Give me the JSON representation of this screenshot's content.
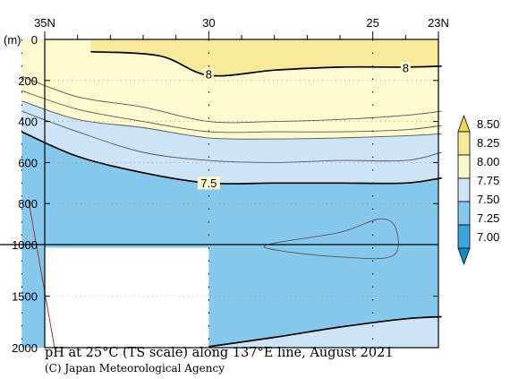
{
  "chart_data": {
    "type": "contour",
    "title": "pH at 25°C (TS scale) along 137°E line, August 2021",
    "credit": "(C) Japan Meteorological Agency",
    "x_axis": {
      "range": [
        35,
        23
      ],
      "ticks": [
        {
          "value": 35,
          "label": "35N"
        },
        {
          "value": 30,
          "label": "30"
        },
        {
          "value": 25,
          "label": "25"
        },
        {
          "value": 23,
          "label": "23N"
        }
      ]
    },
    "y_axis": {
      "unit_label": "(m)",
      "upper_range": [
        0,
        1000
      ],
      "lower_range": [
        1000,
        2000
      ],
      "ticks": [
        {
          "value": 0,
          "label": "0"
        },
        {
          "value": 200,
          "label": "200"
        },
        {
          "value": 400,
          "label": "400"
        },
        {
          "value": 600,
          "label": "600"
        },
        {
          "value": 800,
          "label": "800"
        },
        {
          "value": 1000,
          "label": "1000"
        },
        {
          "value": 1500,
          "label": "1500"
        },
        {
          "value": 2000,
          "label": "2000"
        }
      ]
    },
    "colorbar": {
      "labels": [
        "8.50",
        "8.25",
        "8.00",
        "7.75",
        "7.50",
        "7.25",
        "7.00"
      ],
      "colors": [
        "#eed85c",
        "#f6ea9a",
        "#fdfad0",
        "#cde3f6",
        "#86c8ec",
        "#3aa6dc",
        "#0f8bcc"
      ]
    },
    "band_colors": {
      "above_8_00": "#f6ea9a",
      "7_75_to_8_00": "#fdfad0",
      "7_50_to_7_75": "#cde3f6",
      "below_7_50": "#86c8ec"
    },
    "contour_labels": [
      {
        "text": "8",
        "lat": 30,
        "depth": 170
      },
      {
        "text": "8",
        "lat": 24,
        "depth": 140
      },
      {
        "text": "7.5",
        "lat": 30,
        "depth": 700
      }
    ],
    "contours": {
      "c8_00": [
        [
          33.6,
          60
        ],
        [
          31.5,
          80
        ],
        [
          30,
          175
        ],
        [
          28,
          150
        ],
        [
          26,
          135
        ],
        [
          24,
          135
        ],
        [
          22.9,
          130
        ]
      ],
      "c7_95": [
        [
          35.7,
          180
        ],
        [
          34,
          280
        ],
        [
          32,
          330
        ],
        [
          30,
          400
        ],
        [
          28,
          400
        ],
        [
          26,
          390
        ],
        [
          24,
          370
        ],
        [
          22.9,
          350
        ]
      ],
      "c7_90": [
        [
          35.7,
          250
        ],
        [
          34,
          340
        ],
        [
          32,
          400
        ],
        [
          30,
          450
        ],
        [
          28,
          450
        ],
        [
          26,
          450
        ],
        [
          24,
          440
        ],
        [
          22.9,
          420
        ]
      ],
      "c7_75": [
        [
          35.7,
          300
        ],
        [
          34,
          390
        ],
        [
          32,
          430
        ],
        [
          30,
          480
        ],
        [
          28,
          485
        ],
        [
          26,
          480
        ],
        [
          24,
          470
        ],
        [
          22.9,
          460
        ]
      ],
      "c7_65": [
        [
          35.7,
          350
        ],
        [
          34,
          450
        ],
        [
          32,
          550
        ],
        [
          30,
          590
        ],
        [
          28,
          600
        ],
        [
          26,
          590
        ],
        [
          24,
          590
        ],
        [
          22.9,
          550
        ]
      ],
      "c7_50_upper": [
        [
          35.7,
          450
        ],
        [
          34,
          570
        ],
        [
          32,
          650
        ],
        [
          30,
          700
        ],
        [
          28,
          700
        ],
        [
          26,
          700
        ],
        [
          24,
          700
        ],
        [
          22.9,
          675
        ]
      ],
      "c7_50_lower": [
        [
          30,
          1990
        ],
        [
          28,
          1900
        ],
        [
          26,
          1800
        ],
        [
          24,
          1720
        ],
        [
          22.9,
          1700
        ]
      ],
      "c7_40_closed": [
        [
          28.2,
          1000
        ],
        [
          26,
          940
        ],
        [
          24.8,
          875
        ],
        [
          24.3,
          920
        ],
        [
          24.4,
          1110
        ],
        [
          26,
          1120
        ],
        [
          27.8,
          1060
        ]
      ]
    },
    "station_lats": [
      35.7,
      30,
      25
    ]
  }
}
